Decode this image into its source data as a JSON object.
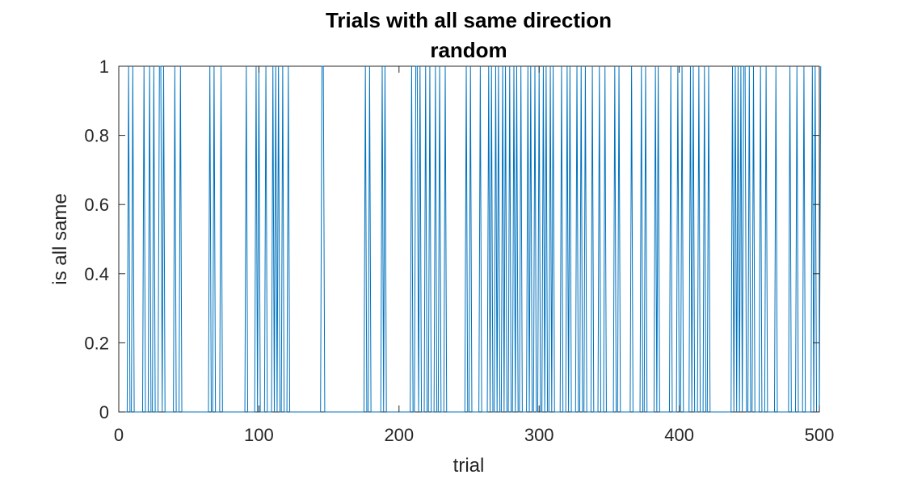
{
  "chart_data": {
    "type": "line",
    "title": "Trials with all same direction",
    "subtitle": "random",
    "xlabel": "trial",
    "ylabel": "is all same",
    "xlim": [
      0,
      500
    ],
    "ylim": [
      0,
      1
    ],
    "xticks": [
      "0",
      "100",
      "200",
      "300",
      "400",
      "500"
    ],
    "yticks": [
      "0",
      "0.2",
      "0.4",
      "0.6",
      "0.8",
      "1"
    ],
    "grid": false,
    "legend": "none",
    "line_color": "#0072BD",
    "series": [
      {
        "x_start": 1,
        "values": [
          0,
          0,
          0,
          0,
          0,
          0,
          1,
          0,
          0,
          1,
          0,
          0,
          0,
          0,
          0,
          0,
          0,
          1,
          0,
          0,
          0,
          1,
          0,
          0,
          1,
          0,
          0,
          0,
          1,
          1,
          0,
          1,
          0,
          0,
          0,
          0,
          0,
          0,
          0,
          1,
          0,
          0,
          0,
          1,
          0,
          0,
          0,
          0,
          0,
          0,
          0,
          0,
          0,
          0,
          0,
          0,
          0,
          0,
          0,
          0,
          0,
          0,
          0,
          0,
          1,
          0,
          0,
          1,
          0,
          0,
          0,
          0,
          1,
          0,
          0,
          0,
          0,
          0,
          0,
          0,
          0,
          0,
          0,
          0,
          0,
          0,
          0,
          0,
          0,
          0,
          1,
          0,
          0,
          0,
          0,
          0,
          0,
          1,
          0,
          1,
          0,
          0,
          0,
          0,
          1,
          0,
          0,
          0,
          0,
          1,
          0,
          1,
          0,
          1,
          0,
          0,
          1,
          0,
          0,
          0,
          1,
          0,
          0,
          0,
          0,
          0,
          0,
          0,
          0,
          0,
          0,
          0,
          0,
          0,
          0,
          0,
          0,
          0,
          0,
          0,
          0,
          0,
          0,
          0,
          1,
          1,
          0,
          0,
          0,
          0,
          0,
          0,
          0,
          0,
          0,
          0,
          0,
          0,
          0,
          0,
          0,
          0,
          0,
          0,
          0,
          0,
          0,
          0,
          0,
          0,
          0,
          0,
          0,
          0,
          0,
          1,
          0,
          0,
          1,
          0,
          0,
          0,
          0,
          0,
          0,
          0,
          0,
          1,
          0,
          1,
          0,
          0,
          0,
          0,
          0,
          0,
          0,
          0,
          0,
          0,
          0,
          0,
          0,
          0,
          0,
          0,
          0,
          0,
          1,
          0,
          0,
          1,
          1,
          0,
          1,
          0,
          0,
          0,
          1,
          0,
          0,
          1,
          0,
          0,
          0,
          1,
          0,
          0,
          1,
          0,
          0,
          0,
          1,
          0,
          0,
          0,
          0,
          0,
          0,
          0,
          0,
          0,
          0,
          0,
          0,
          0,
          0,
          1,
          0,
          0,
          1,
          0,
          0,
          0,
          0,
          0,
          0,
          1,
          0,
          0,
          0,
          0,
          0,
          1,
          0,
          1,
          0,
          0,
          1,
          0,
          1,
          0,
          0,
          1,
          0,
          1,
          0,
          0,
          1,
          0,
          0,
          1,
          0,
          1,
          0,
          0,
          1,
          0,
          0,
          0,
          0,
          1,
          0,
          1,
          0,
          0,
          1,
          0,
          0,
          1,
          0,
          0,
          1,
          0,
          1,
          0,
          0,
          1,
          0,
          1,
          0,
          0,
          0,
          0,
          0,
          1,
          0,
          0,
          0,
          1,
          0,
          1,
          0,
          0,
          0,
          0,
          1,
          0,
          0,
          1,
          0,
          0,
          1,
          0,
          0,
          0,
          0,
          1,
          0,
          0,
          0,
          0,
          1,
          0,
          0,
          0,
          1,
          0,
          0,
          0,
          0,
          0,
          0,
          1,
          0,
          0,
          1,
          0,
          0,
          0,
          0,
          0,
          0,
          0,
          0,
          1,
          0,
          0,
          0,
          0,
          0,
          0,
          1,
          0,
          0,
          1,
          0,
          0,
          0,
          0,
          0,
          0,
          1,
          0,
          1,
          0,
          0,
          0,
          0,
          0,
          0,
          0,
          0,
          1,
          0,
          0,
          0,
          0,
          1,
          0,
          0,
          1,
          0,
          0,
          0,
          0,
          0,
          1,
          0,
          1,
          0,
          0,
          0,
          1,
          0,
          0,
          0,
          1,
          0,
          0,
          1,
          0,
          0,
          0,
          0,
          0,
          0,
          0,
          0,
          0,
          0,
          0,
          0,
          0,
          0,
          0,
          0,
          1,
          0,
          1,
          0,
          1,
          0,
          1,
          0,
          1,
          1,
          0,
          0,
          1,
          0,
          0,
          1,
          0,
          0,
          0,
          0,
          1,
          0,
          0,
          0,
          1,
          0,
          0,
          0,
          0,
          0,
          0,
          1,
          0,
          0,
          0,
          0,
          0,
          0,
          0,
          0,
          0,
          1,
          0,
          0,
          0,
          0,
          1,
          0,
          0,
          0,
          0,
          1,
          0,
          0,
          0,
          0,
          0,
          1,
          0,
          1,
          0,
          0,
          0,
          1
        ]
      }
    ]
  }
}
